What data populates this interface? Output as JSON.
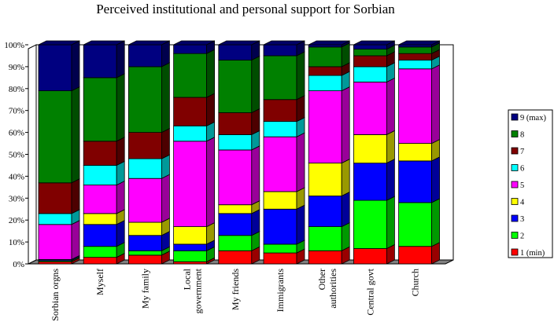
{
  "chart_data": {
    "type": "bar",
    "stacked": true,
    "three_d": true,
    "title": "Perceived institutional and personal support for Sorbian",
    "xlabel": "",
    "ylabel": "",
    "ylim": [
      0,
      100
    ],
    "yticks": [
      "0%",
      "10%",
      "20%",
      "30%",
      "40%",
      "50%",
      "60%",
      "70%",
      "80%",
      "90%",
      "100%"
    ],
    "grid": false,
    "legend_position": "right",
    "categories": [
      [
        "Sorbian orgns"
      ],
      [
        "Myself"
      ],
      [
        "My family"
      ],
      [
        "Local",
        "government"
      ],
      [
        "My friends"
      ],
      [
        "Immigrants"
      ],
      [
        "Other",
        "authorities"
      ],
      [
        "Central govt"
      ],
      [
        "Church"
      ]
    ],
    "series": [
      {
        "name": "1 (min)",
        "color": "#ff0000",
        "values": [
          1,
          3,
          4,
          1,
          6,
          5,
          6,
          7,
          8
        ]
      },
      {
        "name": "2",
        "color": "#00ff00",
        "values": [
          0.5,
          5,
          2,
          5,
          7,
          4,
          11,
          22,
          20
        ]
      },
      {
        "name": "3",
        "color": "#0000ff",
        "values": [
          0.5,
          10,
          7,
          3,
          10,
          16,
          14,
          17,
          19
        ]
      },
      {
        "name": "4",
        "color": "#ffff00",
        "values": [
          0,
          5,
          6,
          8,
          4,
          8,
          15,
          13,
          8
        ]
      },
      {
        "name": "5",
        "color": "#ff00ff",
        "values": [
          16,
          13,
          20,
          39,
          25,
          25,
          33,
          24,
          34
        ]
      },
      {
        "name": "6",
        "color": "#00ffff",
        "values": [
          5,
          9,
          9,
          7,
          7,
          7,
          7,
          7,
          4
        ]
      },
      {
        "name": "7",
        "color": "#800000",
        "values": [
          14,
          11,
          12,
          13,
          10,
          10,
          4,
          5,
          3
        ]
      },
      {
        "name": "8",
        "color": "#008000",
        "values": [
          42,
          29,
          30,
          20,
          24,
          20,
          9,
          3,
          3
        ]
      },
      {
        "name": "9 (max)",
        "color": "#000080",
        "values": [
          21,
          15,
          10,
          4,
          7,
          5,
          1,
          2,
          1
        ]
      }
    ]
  }
}
